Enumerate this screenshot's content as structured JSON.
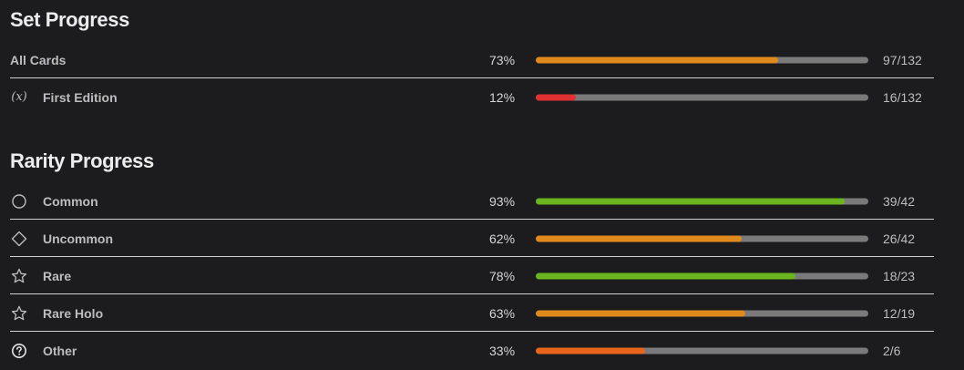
{
  "set_progress": {
    "title": "Set Progress",
    "rows": [
      {
        "label": "All Cards",
        "icon": null,
        "percent_text": "73%",
        "progress": 0.73,
        "count": "97/132",
        "color": "#e08a1e"
      },
      {
        "label": "First Edition",
        "icon": "x-variable-icon",
        "icon_text": "(x)",
        "percent_text": "12%",
        "progress": 0.12,
        "count": "16/132",
        "color": "#e03131"
      }
    ]
  },
  "rarity_progress": {
    "title": "Rarity Progress",
    "rows": [
      {
        "label": "Common",
        "icon": "circle-icon",
        "percent_text": "93%",
        "progress": 0.93,
        "count": "39/42",
        "color": "#6ab41f"
      },
      {
        "label": "Uncommon",
        "icon": "diamond-icon",
        "percent_text": "62%",
        "progress": 0.62,
        "count": "26/42",
        "color": "#e08a1e"
      },
      {
        "label": "Rare",
        "icon": "star-icon",
        "percent_text": "78%",
        "progress": 0.78,
        "count": "18/23",
        "color": "#6ab41f"
      },
      {
        "label": "Rare Holo",
        "icon": "star-icon",
        "percent_text": "63%",
        "progress": 0.63,
        "count": "12/19",
        "color": "#e08a1e"
      },
      {
        "label": "Other",
        "icon": "question-circle-icon",
        "percent_text": "33%",
        "progress": 0.33,
        "count": "2/6",
        "color": "#e8641a"
      }
    ]
  },
  "colors": {
    "background": "#1c1c1e",
    "bar_track": "#7a7a7a",
    "divider": "#d0d0d0"
  }
}
